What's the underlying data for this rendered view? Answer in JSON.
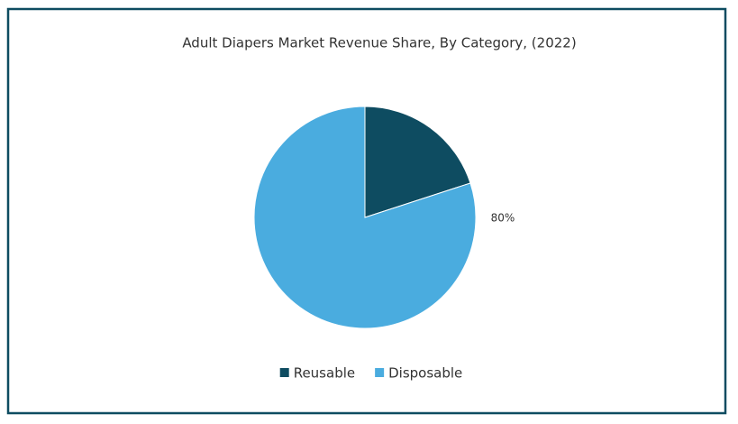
{
  "chart_data": {
    "type": "pie",
    "title": "Adult Diapers Market Revenue Share, By Category, (2022)",
    "categories": [
      "Reusable",
      "Disposable"
    ],
    "values": [
      20,
      80
    ],
    "value_labels": [
      null,
      "80%"
    ],
    "colors": [
      "#0e4c61",
      "#4aacdf"
    ],
    "legend": "bottom"
  }
}
